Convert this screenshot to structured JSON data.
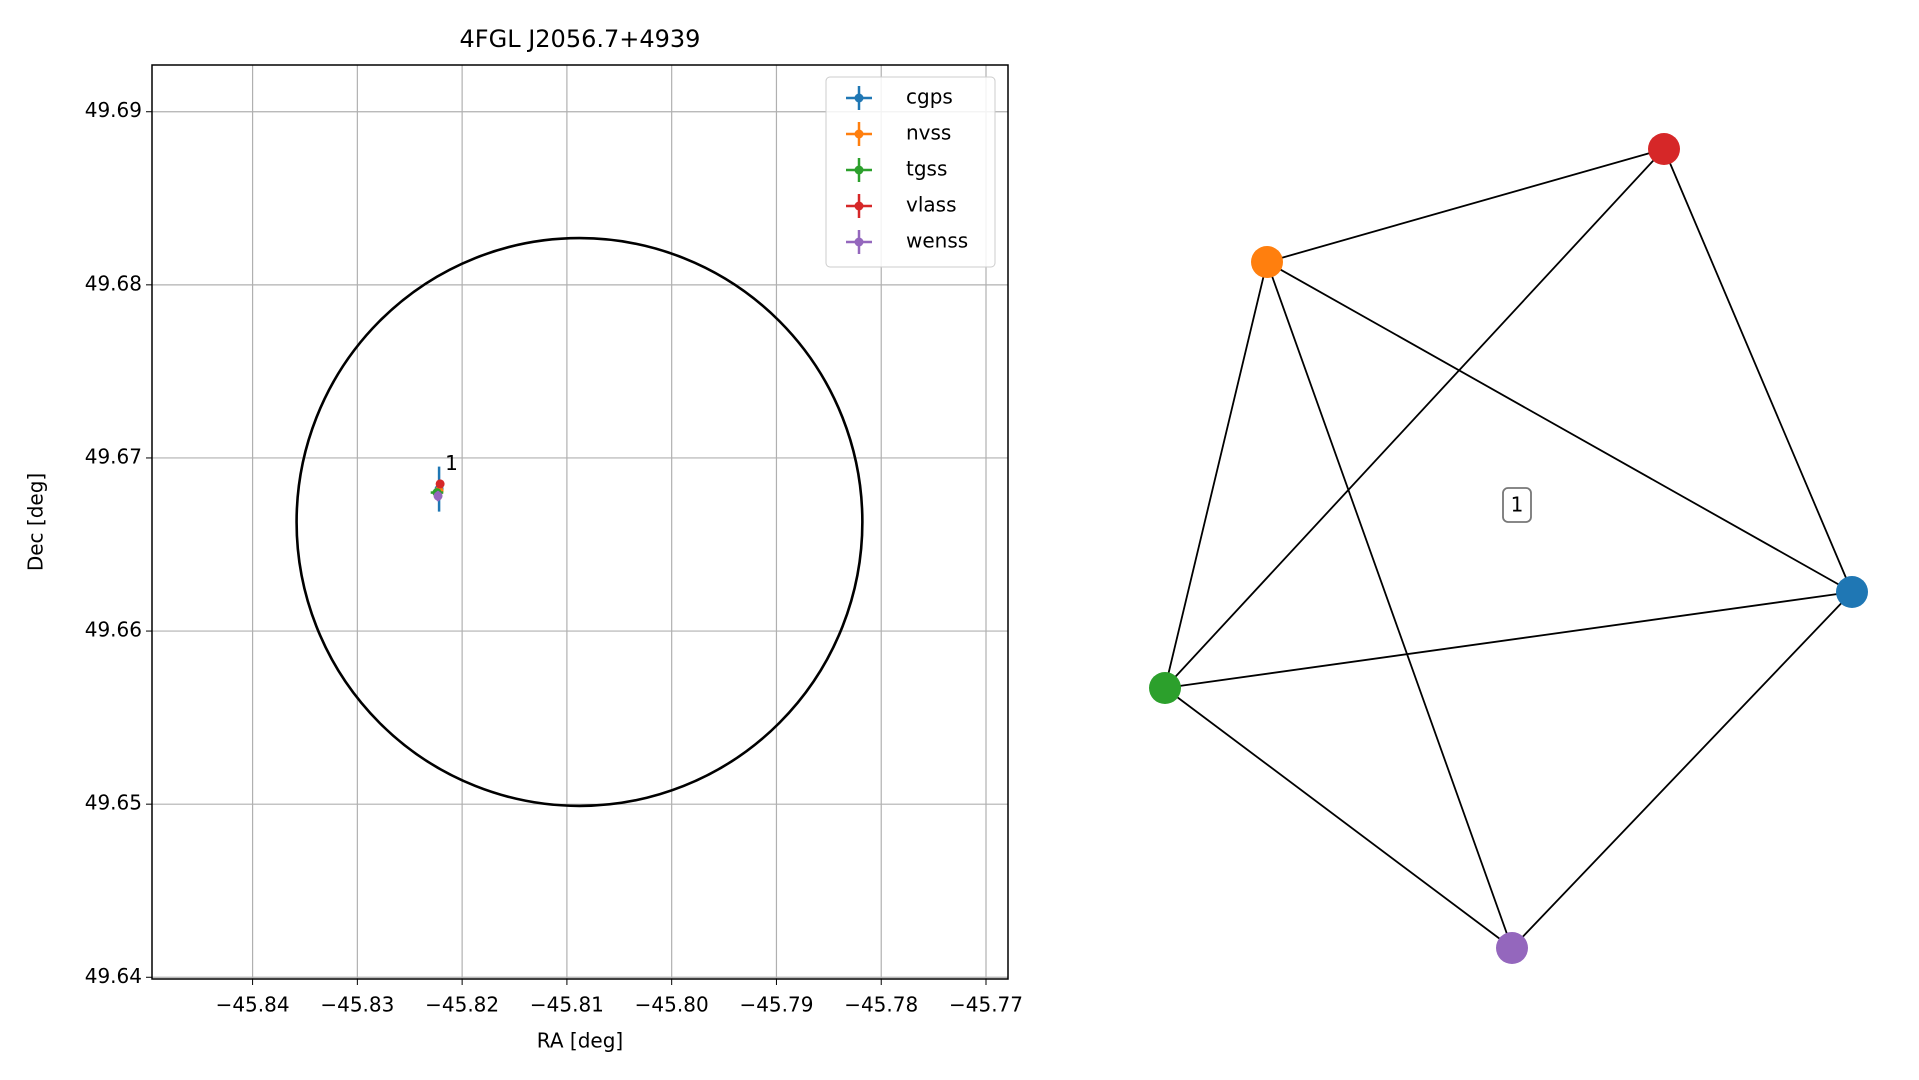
{
  "chart_data": [
    {
      "type": "errorbar",
      "title": "4FGL J2056.7+4939",
      "x_label": "RA [deg]",
      "y_label": "Dec [deg]",
      "xlim": [
        -45.8496,
        -45.7679
      ],
      "ylim": [
        49.6399,
        49.6927
      ],
      "xticks": [
        {
          "value": -45.84,
          "label": "−45.84"
        },
        {
          "value": -45.83,
          "label": "−45.83"
        },
        {
          "value": -45.82,
          "label": "−45.82"
        },
        {
          "value": -45.81,
          "label": "−45.81"
        },
        {
          "value": -45.8,
          "label": "−45.80"
        },
        {
          "value": -45.79,
          "label": "−45.79"
        },
        {
          "value": -45.78,
          "label": "−45.78"
        },
        {
          "value": -45.77,
          "label": "−45.77"
        }
      ],
      "yticks": [
        49.64,
        49.65,
        49.66,
        49.67,
        49.68,
        49.69
      ],
      "grid": true,
      "legend": "upper right",
      "series": [
        {
          "name": "cgps",
          "color": "#1f77b4",
          "x": [
            -45.8222
          ],
          "y": [
            49.6682
          ],
          "xerr": [
            0.0002
          ],
          "yerr": [
            0.0013
          ]
        },
        {
          "name": "nvss",
          "color": "#ff7f0e",
          "x": [
            -45.8222
          ],
          "y": [
            49.6681
          ],
          "xerr": [
            0.0002
          ],
          "yerr": [
            0.0002
          ]
        },
        {
          "name": "tgss",
          "color": "#2ca02c",
          "x": [
            -45.8224
          ],
          "y": [
            49.668
          ],
          "xerr": [
            0.0006
          ],
          "yerr": [
            0.0002
          ]
        },
        {
          "name": "vlass",
          "color": "#d62728",
          "x": [
            -45.8221
          ],
          "y": [
            49.6685
          ],
          "xerr": [
            0.0001
          ],
          "yerr": [
            0.0001
          ]
        },
        {
          "name": "wenss",
          "color": "#9467bd",
          "x": [
            -45.8223
          ],
          "y": [
            49.6678
          ],
          "xerr": [
            0.0002
          ],
          "yerr": [
            0.0003
          ]
        }
      ],
      "circle": {
        "center": [
          -45.8088,
          49.6663
        ],
        "rx": 0.027,
        "ry": 0.0164,
        "color": "#000000"
      },
      "annotations": [
        {
          "text": "1"
        }
      ]
    },
    {
      "type": "network",
      "label": "1",
      "nodes": [
        {
          "color": "#1f77b4"
        },
        {
          "color": "#ff7f0e"
        },
        {
          "color": "#2ca02c"
        },
        {
          "color": "#d62728"
        },
        {
          "color": "#9467bd"
        }
      ],
      "edges": [
        [
          1,
          3
        ],
        [
          1,
          0
        ],
        [
          1,
          2
        ],
        [
          1,
          4
        ],
        [
          3,
          2
        ],
        [
          3,
          0
        ],
        [
          2,
          0
        ],
        [
          2,
          4
        ],
        [
          4,
          0
        ]
      ]
    }
  ]
}
